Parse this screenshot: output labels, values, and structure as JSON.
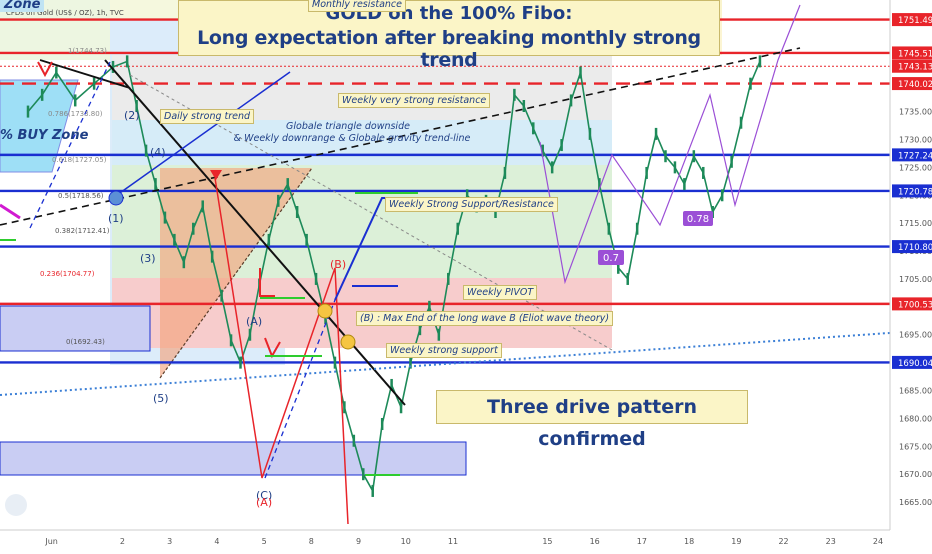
{
  "title": {
    "line1": "GOLD on the 100% Fibo:",
    "line2": "Long expectation after breaking monthly strong trend"
  },
  "symbol_info": "CFDs on Gold (US$ / OZ), 1h, TVC",
  "zone_label_top": "Zone",
  "buy_zone_label": "% BUY Zone",
  "three_drive_label": "Three drive pattern confirmed",
  "notes": {
    "monthly_resistance": "Monthly resistance",
    "weekly_very_strong_resistance": "Weekly very strong resistance",
    "daily_strong_trend": "Daily strong trend",
    "global_triangle": "Globale triangle downside",
    "weekly_downrange": "& Weekly downrange & Globale gravity trend-line",
    "weekly_support_resistance": "Weekly Strong Support/Resistance",
    "weekly_pivot": "Weekly PIVOT",
    "max_end_wave_b": "(B) : Max End of the long wave B (Eliot wave theory)",
    "weekly_strong_support": "Weekly strong support"
  },
  "wave_labels": {
    "w1": "(1)",
    "w2": "(2)",
    "w3": "(3)",
    "w4": "(4)",
    "w5": "(5)",
    "wA": "(A)",
    "wB": "(B)",
    "wC": "(C)",
    "wA2": "(A)"
  },
  "ratio_badges": {
    "r1": "0.7",
    "r2": "0.78"
  },
  "fib_labels": {
    "f1": "1(1744.73)",
    "f2": "0.786(1733.80)",
    "f3": "0.618(1727.05)",
    "f4": "0.5(1718.56)",
    "f5": "0.382(1712.41)",
    "f6": "0.236(1704.77)",
    "f7": "0(1692.43)"
  },
  "colors": {
    "title_text": "#1f3f86",
    "note_bg": "#fbf5c7",
    "red_level": "#e8242a",
    "blue_level": "#1a2fd1",
    "candle": "#1d8a59",
    "fib_red_zone": "#f7c9c9",
    "fib_green_zone": "#d9f0d6",
    "fib_blue_zone": "#d6ecf8",
    "buy_zone": "#4fc6f0",
    "triangle_fill": "#f3a47e"
  },
  "chart_data": {
    "type": "line",
    "title": "GOLD on the 100% Fibo: Long expectation after breaking monthly strong trend",
    "xlabel": "",
    "ylabel": "",
    "x_ticks": [
      {
        "label": "Jun",
        "x": 0.5
      },
      {
        "label": "2",
        "x": 2
      },
      {
        "label": "3",
        "x": 3
      },
      {
        "label": "4",
        "x": 4
      },
      {
        "label": "5",
        "x": 5
      },
      {
        "label": "8",
        "x": 6
      },
      {
        "label": "9",
        "x": 7
      },
      {
        "label": "10",
        "x": 8
      },
      {
        "label": "11",
        "x": 9
      },
      {
        "label": "15",
        "x": 11
      },
      {
        "label": "16",
        "x": 12
      },
      {
        "label": "17",
        "x": 13
      },
      {
        "label": "18",
        "x": 14
      },
      {
        "label": "19",
        "x": 15
      },
      {
        "label": "22",
        "x": 16
      },
      {
        "label": "23",
        "x": 17
      },
      {
        "label": "24",
        "x": 18
      }
    ],
    "xlim": [
      0,
      18
    ],
    "ylim": [
      1660,
      1755
    ],
    "y_ticks": [
      1665,
      1670,
      1675,
      1680,
      1685,
      1690,
      1695,
      1700,
      1705,
      1710,
      1715,
      1720,
      1725,
      1730,
      1735
    ],
    "price_levels": [
      {
        "value": 1751.49,
        "color": "red",
        "style": "solid"
      },
      {
        "value": 1745.51,
        "color": "red",
        "style": "solid"
      },
      {
        "value": 1743.13,
        "color": "red",
        "style": "dotted"
      },
      {
        "value": 1740.02,
        "color": "red",
        "style": "dashed"
      },
      {
        "value": 1727.24,
        "color": "blue",
        "style": "solid"
      },
      {
        "value": 1720.78,
        "color": "blue",
        "style": "solid"
      },
      {
        "value": 1710.8,
        "color": "blue",
        "style": "solid"
      },
      {
        "value": 1700.53,
        "color": "red",
        "style": "solid"
      },
      {
        "value": 1690.04,
        "color": "blue",
        "style": "solid"
      }
    ],
    "series": [
      {
        "type": "price",
        "x": [
          0.0,
          0.3,
          0.6,
          1.0,
          1.4,
          1.8,
          2.1,
          2.3,
          2.5,
          2.7,
          2.9,
          3.1,
          3.3,
          3.5,
          3.7,
          3.9,
          4.1,
          4.3,
          4.5,
          4.7,
          4.9,
          5.1,
          5.3,
          5.5,
          5.7,
          5.9,
          6.1,
          6.3,
          6.5,
          6.7,
          6.9,
          7.1,
          7.3,
          7.5,
          7.7,
          7.9,
          8.1,
          8.3,
          8.5,
          8.7,
          8.9,
          9.1,
          9.3,
          9.5,
          9.7,
          9.9,
          10.1,
          10.3,
          10.5,
          10.7,
          10.9,
          11.1,
          11.3,
          11.5,
          11.7,
          11.9,
          12.1,
          12.3,
          12.5,
          12.7,
          12.9,
          13.1,
          13.3,
          13.5,
          13.7,
          13.9,
          14.1,
          14.3,
          14.5,
          14.7,
          14.9,
          15.1,
          15.3,
          15.5
        ],
        "y": [
          1735,
          1738,
          1742,
          1737,
          1740,
          1743,
          1744,
          1736,
          1728,
          1722,
          1716,
          1712,
          1708,
          1714,
          1718,
          1709,
          1702,
          1694,
          1690,
          1695,
          1704,
          1712,
          1719,
          1722,
          1717,
          1712,
          1705,
          1698,
          1690,
          1682,
          1676,
          1670,
          1667,
          1679,
          1686,
          1682,
          1690,
          1696,
          1700,
          1695,
          1705,
          1714,
          1720,
          1718,
          1719,
          1717,
          1724,
          1738,
          1736,
          1732,
          1728,
          1725,
          1729,
          1737,
          1742,
          1731,
          1722,
          1714,
          1707,
          1705,
          1714,
          1724,
          1731,
          1727,
          1725,
          1722,
          1727,
          1724,
          1717,
          1720,
          1726,
          1733,
          1740,
          1744
        ]
      }
    ],
    "legend": "none",
    "grid": false
  }
}
